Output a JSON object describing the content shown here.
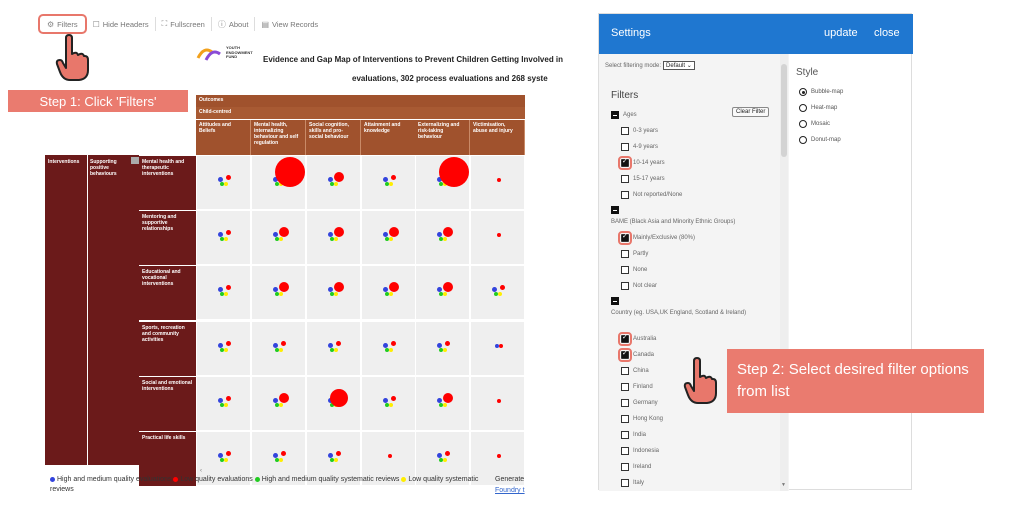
{
  "toolbar": {
    "filters": "Filters",
    "hide_headers": "Hide Headers",
    "fullscreen": "Fullscreen",
    "about": "About",
    "view_records": "View Records"
  },
  "logo_text": "YOUTH ENDOWMENT FUND",
  "map": {
    "title": "Evidence and Gap Map of Interventions to Prevent Children Getting Involved in",
    "subtitle": "evaluations, 302 process evaluations and 268 syste",
    "outcomes_label": "Outcomes",
    "child_centred_label": "Child-centred",
    "outcomes": [
      "Attitudes and Beliefs",
      "Mental health, internalizing behaviour and self regulation",
      "Social cognition, skills and pro-social behaviour",
      "Attainment and knowledge",
      "Externalizing and risk-taking behaviour",
      "Victimisation, abuse and injury"
    ],
    "interventions_label": "Interventions",
    "supporting_label": "Supporting positive behaviours",
    "rows": [
      "Mental health and therapeutic interventions",
      "Mentoring and supportive relationships",
      "Educational and vocational interventions",
      "Sports, recreation and community activities",
      "Social and emotional interventions",
      "Practical life skills"
    ],
    "colors": {
      "hm_evals": "#3344dd",
      "low_evals": "#ff0000",
      "hm_reviews": "#22cc22",
      "low_reviews": "#ffee00"
    }
  },
  "legend": {
    "hm_evals": "High and medium quality evaluations",
    "low_evals": "Low quality evaluations",
    "hm_reviews": "High and medium quality systematic reviews",
    "low_reviews": "Low quality systematic reviews"
  },
  "generated": "Generate",
  "foundry": "Foundry t",
  "step1": "Step 1: Click 'Filters'",
  "step2": "Step 2: Select desired filter options from list",
  "settings": {
    "title": "Settings",
    "update": "update",
    "close": "close",
    "mode_label": "Select filtering mode:",
    "mode_value": "Default",
    "filters_heading": "Filters",
    "clear_filter": "Clear Filter",
    "ages_label": "Ages",
    "ages": [
      "0-3 years",
      "4-9 years",
      "10-14 years",
      "15-17 years",
      "Not reported/None"
    ],
    "bame_label": "BAME (Black Asia and Minority Ethnic Groups)",
    "bame": [
      "Mainly/Exclusive (80%)",
      "Partly",
      "None",
      "Not clear"
    ],
    "country_label": "Country (eg. USA,UK England, Scotland & Ireland)",
    "countries": [
      "Australia",
      "Canada",
      "China",
      "Finland",
      "Germany",
      "Hong Kong",
      "India",
      "Indonesia",
      "Ireland",
      "Italy"
    ],
    "style_heading": "Style",
    "styles": [
      "Bubble-map",
      "Heat-map",
      "Mosaic",
      "Donut-map"
    ]
  }
}
